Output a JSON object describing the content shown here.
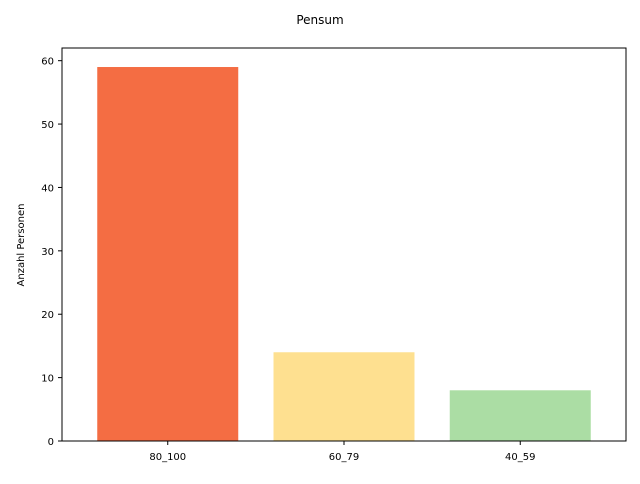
{
  "chart_data": {
    "type": "bar",
    "title": "Pensum",
    "xlabel": "",
    "ylabel": "Anzahl Personen",
    "categories": [
      "80_100",
      "60_79",
      "40_59"
    ],
    "values": [
      59,
      14,
      8
    ],
    "colors": [
      "#f46d43",
      "#fee090",
      "#abdda4"
    ],
    "ylim": [
      0,
      62
    ],
    "yticks": [
      0,
      10,
      20,
      30,
      40,
      50,
      60
    ],
    "grid": false,
    "legend": "none"
  }
}
